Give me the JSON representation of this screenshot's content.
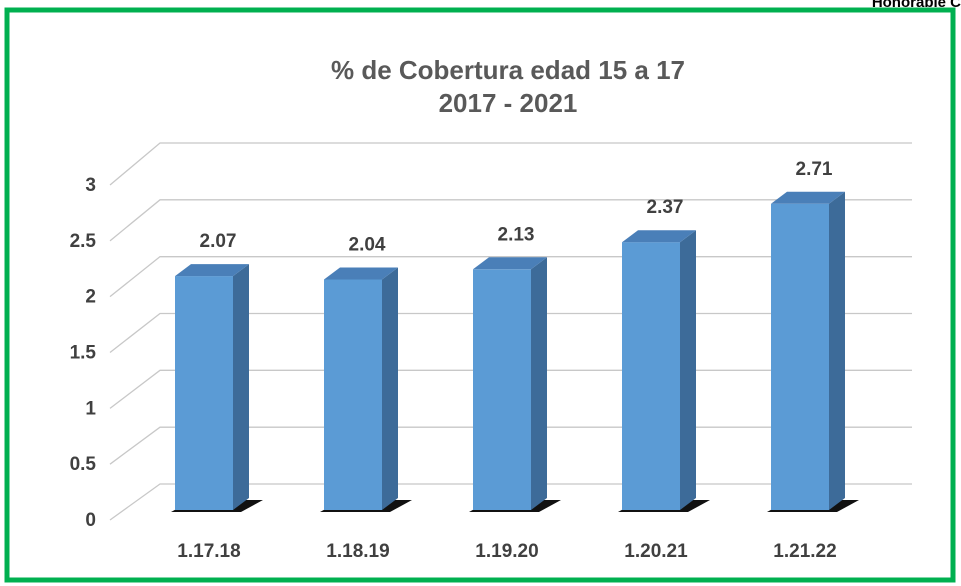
{
  "chart_data": {
    "type": "bar3d",
    "title": "% de Cobertura edad 15 a 17",
    "subtitle": "2017 - 2021",
    "annotation": "Honorable C",
    "categories": [
      "1.17.18",
      "1.18.19",
      "1.19.20",
      "1.20.21",
      "1.21.22"
    ],
    "values": [
      2.07,
      2.04,
      2.13,
      2.37,
      2.71
    ],
    "color": "#5b9bd5",
    "ylim": [
      0,
      3
    ],
    "yticks": [
      0,
      0.5,
      1,
      1.5,
      2,
      2.5,
      3
    ],
    "grid": true
  }
}
